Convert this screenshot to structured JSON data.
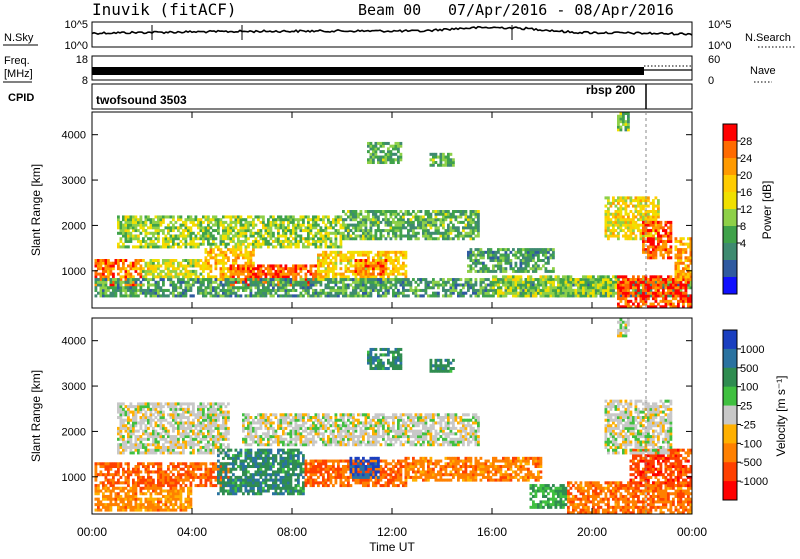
{
  "header": {
    "site": "Inuvik (fitACF)",
    "beam": "Beam 00",
    "dates": "07/Apr/2016 - 08/Apr/2016"
  },
  "noise_panel": {
    "left_label": "N.Sky",
    "right_label": "N.Search",
    "left_ticks": [
      "10^5",
      "10^0"
    ],
    "right_ticks": [
      "10^5",
      "10^0"
    ]
  },
  "freq_panel": {
    "left_label_1": "Freq.",
    "left_label_2": "[MHz]",
    "right_label": "Nave",
    "left_ticks": [
      "18",
      "8"
    ],
    "right_ticks": [
      "60",
      "0"
    ]
  },
  "cpid_panel": {
    "label": "CPID",
    "program_1": "twofsound 3503",
    "program_2": "rbsp 200"
  },
  "chart_data": [
    {
      "type": "heatmap",
      "name": "power",
      "ylabel": "Slant Range [km]",
      "colorbar_label": "Power [dB]",
      "colorbar_ticks": [
        "28",
        "24",
        "20",
        "16",
        "12",
        "8",
        "4"
      ],
      "colorbar_colors": [
        "#ff0000",
        "#ff6a00",
        "#ff9a00",
        "#ffcc00",
        "#f0e000",
        "#8ed048",
        "#3fa24a",
        "#3e8a70",
        "#2f5aa0",
        "#1010ff"
      ],
      "ylim": [
        180,
        4500
      ],
      "yticks": [
        1000,
        2000,
        3000,
        4000
      ],
      "xlim_hours": [
        0,
        24
      ],
      "regions": [
        {
          "t0": 0.1,
          "t1": 2.0,
          "r0": 700,
          "r1": 1250,
          "level": 0.85
        },
        {
          "t0": 2.0,
          "t1": 4.5,
          "r0": 850,
          "r1": 1250,
          "level": 0.55
        },
        {
          "t0": 4.5,
          "t1": 6.5,
          "r0": 800,
          "r1": 1500,
          "level": 0.7
        },
        {
          "t0": 5.5,
          "t1": 9.0,
          "r0": 700,
          "r1": 1100,
          "level": 0.9
        },
        {
          "t0": 9.0,
          "t1": 12.5,
          "r0": 800,
          "r1": 1400,
          "level": 0.65
        },
        {
          "t0": 10.5,
          "t1": 11.8,
          "r0": 900,
          "r1": 1250,
          "level": 0.85
        },
        {
          "t0": 0.1,
          "t1": 24.0,
          "r0": 450,
          "r1": 800,
          "level": 0.3
        },
        {
          "t0": 1.0,
          "t1": 10.0,
          "r0": 1500,
          "r1": 2200,
          "level": 0.45
        },
        {
          "t0": 10.0,
          "t1": 15.5,
          "r0": 1700,
          "r1": 2300,
          "level": 0.35
        },
        {
          "t0": 11.0,
          "t1": 12.3,
          "r0": 3400,
          "r1": 3800,
          "level": 0.35
        },
        {
          "t0": 13.5,
          "t1": 14.5,
          "r0": 3300,
          "r1": 3600,
          "level": 0.35
        },
        {
          "t0": 15.0,
          "t1": 18.5,
          "r0": 1000,
          "r1": 1500,
          "level": 0.3
        },
        {
          "t0": 16.0,
          "t1": 21.0,
          "r0": 450,
          "r1": 850,
          "level": 0.45
        },
        {
          "t0": 20.5,
          "t1": 22.6,
          "r0": 1700,
          "r1": 2600,
          "level": 0.6
        },
        {
          "t0": 22.0,
          "t1": 23.2,
          "r0": 1300,
          "r1": 2100,
          "level": 0.9
        },
        {
          "t0": 21.0,
          "t1": 24.0,
          "r0": 200,
          "r1": 900,
          "level": 0.92
        },
        {
          "t0": 23.3,
          "t1": 24.0,
          "r0": 800,
          "r1": 1700,
          "level": 0.75
        },
        {
          "t0": 21.0,
          "t1": 21.5,
          "r0": 4100,
          "r1": 4500,
          "level": 0.4
        }
      ]
    },
    {
      "type": "heatmap",
      "name": "velocity",
      "ylabel": "Slant Range [km]",
      "colorbar_label": "Velocity [m s⁻¹]",
      "colorbar_ticks": [
        "1000",
        "500",
        "100",
        "25",
        "-25",
        "-100",
        "-500",
        "-1000"
      ],
      "colorbar_colors": [
        "#1a3fc0",
        "#2a72a0",
        "#2f8c50",
        "#40c040",
        "#c8c8c8",
        "#ffb000",
        "#ff8000",
        "#ff4000",
        "#ff0000"
      ],
      "ylim": [
        180,
        4500
      ],
      "yticks": [
        1000,
        2000,
        3000,
        4000
      ],
      "xlim_hours": [
        0,
        24
      ],
      "regions": [
        {
          "t0": 0.1,
          "t1": 5.5,
          "r0": 800,
          "r1": 1300,
          "level": -0.65
        },
        {
          "t0": 0.1,
          "t1": 4.0,
          "r0": 250,
          "r1": 750,
          "level": -0.45
        },
        {
          "t0": 1.0,
          "t1": 5.5,
          "r0": 1500,
          "r1": 2600,
          "level": 0.0
        },
        {
          "t0": 5.0,
          "t1": 8.5,
          "r0": 600,
          "r1": 1600,
          "level": 0.55
        },
        {
          "t0": 8.5,
          "t1": 12.5,
          "r0": 800,
          "r1": 1350,
          "level": -0.6
        },
        {
          "t0": 10.3,
          "t1": 11.4,
          "r0": 1000,
          "r1": 1400,
          "level": 0.9
        },
        {
          "t0": 6.0,
          "t1": 15.5,
          "r0": 1700,
          "r1": 2400,
          "level": 0.0
        },
        {
          "t0": 12.5,
          "t1": 18.0,
          "r0": 900,
          "r1": 1400,
          "level": -0.5
        },
        {
          "t0": 11.0,
          "t1": 12.3,
          "r0": 3400,
          "r1": 3800,
          "level": 0.55
        },
        {
          "t0": 13.5,
          "t1": 14.5,
          "r0": 3300,
          "r1": 3600,
          "level": 0.55
        },
        {
          "t0": 17.5,
          "t1": 19.0,
          "r0": 300,
          "r1": 800,
          "level": 0.35
        },
        {
          "t0": 19.0,
          "t1": 24.0,
          "r0": 200,
          "r1": 900,
          "level": -0.55
        },
        {
          "t0": 21.5,
          "t1": 24.0,
          "r0": 800,
          "r1": 1600,
          "level": -0.75
        },
        {
          "t0": 20.5,
          "t1": 23.2,
          "r0": 1500,
          "r1": 2700,
          "level": 0.0
        },
        {
          "t0": 21.0,
          "t1": 21.5,
          "r0": 4100,
          "r1": 4500,
          "level": 0.0
        }
      ]
    }
  ],
  "time_axis": {
    "label": "Time UT",
    "ticks": [
      "00:00",
      "04:00",
      "08:00",
      "12:00",
      "16:00",
      "20:00",
      "00:00"
    ]
  }
}
